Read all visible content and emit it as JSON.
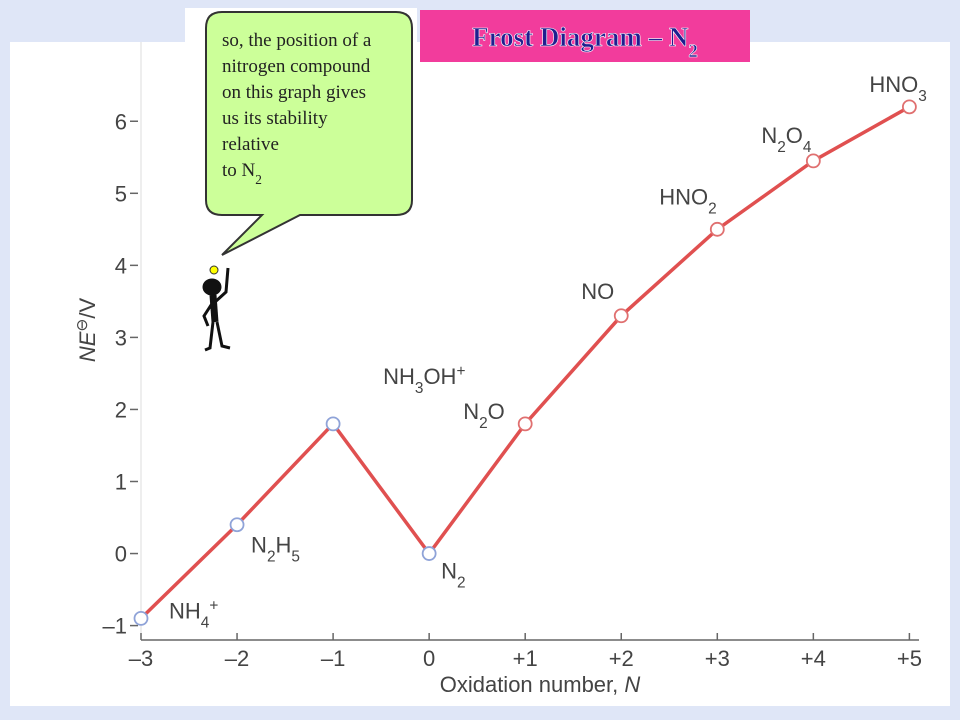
{
  "chart_data": {
    "type": "line",
    "title": [
      {
        "t": "Frost Diagram – N"
      },
      {
        "sub": "2"
      }
    ],
    "x_label": [
      {
        "t": "Oxidation number, "
      },
      {
        "i": "N"
      }
    ],
    "y_label": [
      {
        "i": "NE"
      },
      {
        "sup": "⊖"
      },
      {
        "t": "/V"
      }
    ],
    "x": [
      -3,
      -2,
      -1,
      0,
      1,
      2,
      3,
      4,
      5
    ],
    "series": [
      {
        "color": "#e05050",
        "values": [
          -0.9,
          0.4,
          1.8,
          0,
          1.8,
          3.3,
          4.5,
          5.45,
          6.2
        ],
        "marker_colors": [
          "#8fa3d8",
          "#8fa3d8",
          "#8fa3d8",
          "#8fa3d8",
          "#e07070",
          "#e07070",
          "#e07070",
          "#e07070",
          "#e07070"
        ]
      }
    ],
    "point_labels": [
      [
        {
          "t": "NH"
        },
        {
          "sub": "4"
        },
        {
          "sup": "+"
        }
      ],
      [
        {
          "t": "N"
        },
        {
          "sub": "2"
        },
        {
          "t": "H"
        },
        {
          "sub": "5"
        }
      ],
      [
        {
          "t": "NH"
        },
        {
          "sub": "3"
        },
        {
          "t": "OH"
        },
        {
          "sup": "+"
        }
      ],
      [
        {
          "t": "N"
        },
        {
          "sub": "2"
        }
      ],
      [
        {
          "t": "N"
        },
        {
          "sub": "2"
        },
        {
          "t": "O"
        }
      ],
      [
        {
          "t": "NO"
        }
      ],
      [
        {
          "t": "HNO"
        },
        {
          "sub": "2"
        }
      ],
      [
        {
          "t": "N"
        },
        {
          "sub": "2"
        },
        {
          "t": "O"
        },
        {
          "sub": "4"
        }
      ],
      [
        {
          "t": "HNO"
        },
        {
          "sub": "3"
        }
      ]
    ],
    "xlim": [
      -3,
      5.1
    ],
    "ylim": [
      -1.2,
      7.1
    ],
    "xticks": [
      {
        "value": -3,
        "label": "–3"
      },
      {
        "value": -2,
        "label": "–2"
      },
      {
        "value": -1,
        "label": "–1"
      },
      0,
      {
        "value": 1,
        "label": "+1"
      },
      {
        "value": 2,
        "label": "+2"
      },
      {
        "value": 3,
        "label": "+3"
      },
      {
        "value": 4,
        "label": "+4"
      },
      {
        "value": 5,
        "label": "+5"
      }
    ],
    "yticks": [
      {
        "value": -1,
        "label": "–1"
      },
      0,
      1,
      2,
      3,
      4,
      5,
      6
    ]
  },
  "callout": {
    "lines": [
      [
        {
          "t": "so, the position of a"
        }
      ],
      [
        {
          "t": "nitrogen compound"
        }
      ],
      [
        {
          "t": "on this graph gives"
        }
      ],
      [
        {
          "t": "us its stability"
        }
      ],
      [
        {
          "t": "relative"
        }
      ],
      [
        {
          "t": "to N"
        },
        {
          "sub": "2"
        }
      ]
    ]
  }
}
